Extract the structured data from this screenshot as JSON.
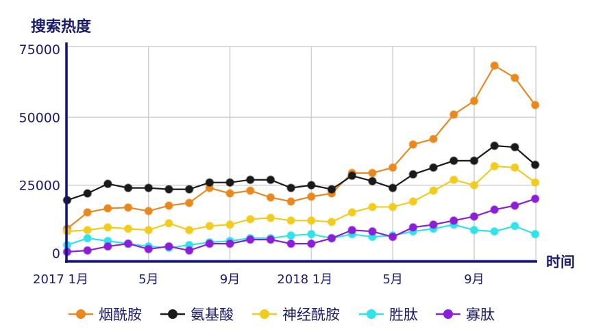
{
  "chart_data": {
    "type": "line",
    "ylabel": "搜索热度",
    "xlabel": "时间",
    "ylim": [
      0,
      75000
    ],
    "yticks": [
      "0",
      "25000",
      "50000",
      "75000"
    ],
    "xtick_labels": [
      {
        "index": 0,
        "label": "2017 1月"
      },
      {
        "index": 4,
        "label": "5月"
      },
      {
        "index": 8,
        "label": "9月"
      },
      {
        "index": 12,
        "label": "2018 1月"
      },
      {
        "index": 16,
        "label": "5月"
      },
      {
        "index": 20,
        "label": "9月"
      }
    ],
    "x": [
      "2017-01",
      "2017-02",
      "2017-03",
      "2017-04",
      "2017-05",
      "2017-06",
      "2017-07",
      "2017-08",
      "2017-09",
      "2017-10",
      "2017-11",
      "2017-12",
      "2018-01",
      "2018-02",
      "2018-03",
      "2018-04",
      "2018-05",
      "2018-06",
      "2018-07",
      "2018-08",
      "2018-09",
      "2018-10",
      "2018-11",
      "2018-12"
    ],
    "grid": true,
    "legend_placement": "bottom",
    "series": [
      {
        "name": "烟酰胺",
        "color": "#e8891f",
        "values": [
          9000,
          15000,
          16500,
          16800,
          15500,
          17500,
          18500,
          24000,
          22000,
          23000,
          20500,
          19000,
          20800,
          22000,
          29500,
          29500,
          31500,
          40000,
          42000,
          51000,
          56000,
          69000,
          64500,
          54500
        ]
      },
      {
        "name": "氨基酸",
        "color": "#1a1a1a",
        "values": [
          19500,
          22000,
          25500,
          24000,
          24000,
          23500,
          23500,
          26000,
          26000,
          27000,
          27000,
          24000,
          25000,
          23500,
          28500,
          26500,
          24000,
          29000,
          31500,
          34000,
          34000,
          39500,
          39000,
          32500
        ]
      },
      {
        "name": "神经酰胺",
        "color": "#f0cc1e",
        "values": [
          8000,
          8500,
          9500,
          9000,
          8500,
          11000,
          8500,
          10000,
          10500,
          12500,
          13000,
          12000,
          12000,
          11500,
          15000,
          17000,
          17000,
          19000,
          23000,
          27000,
          25000,
          32000,
          31500,
          26000
        ]
      },
      {
        "name": "胜肽",
        "color": "#2fe3e8",
        "values": [
          3000,
          5500,
          4500,
          3500,
          2500,
          2000,
          3000,
          4000,
          4500,
          5500,
          5500,
          6500,
          7000,
          5500,
          7000,
          6000,
          6500,
          8000,
          9000,
          10500,
          8500,
          8000,
          10000,
          7000
        ]
      },
      {
        "name": "寡肽",
        "color": "#8a1fd6",
        "values": [
          500,
          1000,
          2500,
          3500,
          1500,
          2500,
          1000,
          3500,
          3500,
          5000,
          5000,
          3500,
          3500,
          5500,
          8500,
          8000,
          6000,
          9500,
          10500,
          12000,
          13500,
          16000,
          17500,
          20000
        ]
      }
    ]
  }
}
